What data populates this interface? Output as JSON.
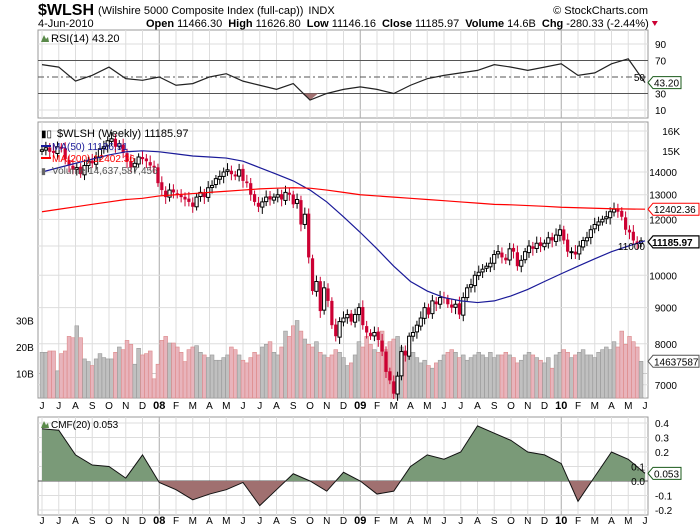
{
  "header": {
    "symbol": "$WLSH",
    "name": "(Wilshire 5000 Composite Index (full-cap))",
    "exchange": "INDX",
    "copyright": "© StockCharts.com",
    "date": "4-Jun-2010",
    "open_label": "Open",
    "open": "11466.30",
    "high_label": "High",
    "high": "11626.80",
    "low_label": "Low",
    "low": "11146.16",
    "close_label": "Close",
    "close": "11185.97",
    "volume_label": "Volume",
    "volume": "14.6B",
    "chg_label": "Chg",
    "chg": "-280.33 (-2.44%)",
    "chg_direction": "down"
  },
  "colors": {
    "down": "#cc0033",
    "up": "#000000",
    "ma50": "#1a1a99",
    "ma200": "#ff0000",
    "vol_down": "#e8b4bc",
    "vol_up": "#c0c0c0",
    "cmf_pos": "#7a9a78",
    "cmf_neg": "#a07070",
    "rsi_box": "#1a5a1a"
  },
  "chart_data": [
    {
      "type": "line",
      "panel": "RSI",
      "title": "RSI(14) 43.20",
      "frequency": "monthly approx",
      "x": [
        "Jun-07",
        "Jul-07",
        "Aug-07",
        "Sep-07",
        "Oct-07",
        "Nov-07",
        "Dec-07",
        "Jan-08",
        "Feb-08",
        "Mar-08",
        "Apr-08",
        "May-08",
        "Jun-08",
        "Jul-08",
        "Aug-08",
        "Sep-08",
        "Oct-08",
        "Nov-08",
        "Dec-08",
        "Jan-09",
        "Feb-09",
        "Mar-09",
        "Apr-09",
        "May-09",
        "Jun-09",
        "Jul-09",
        "Aug-09",
        "Sep-09",
        "Oct-09",
        "Nov-09",
        "Dec-09",
        "Jan-10",
        "Feb-10",
        "Mar-10",
        "Apr-10",
        "May-10",
        "Jun-10"
      ],
      "values": [
        65,
        62,
        45,
        52,
        62,
        48,
        46,
        50,
        40,
        42,
        50,
        54,
        45,
        40,
        35,
        42,
        22,
        30,
        35,
        38,
        35,
        30,
        40,
        48,
        52,
        55,
        58,
        65,
        62,
        58,
        62,
        66,
        52,
        55,
        66,
        72,
        43.2
      ],
      "ylim": [
        0,
        100
      ],
      "ticks": [
        "90",
        "70",
        "50",
        "30",
        "10"
      ],
      "reference_lines": [
        70,
        50,
        30
      ],
      "last_value_label": "43.20"
    },
    {
      "type": "candlestick",
      "panel": "price",
      "title": "$WLSH (Weekly) 11185.97",
      "log_scale": true,
      "ylim": [
        6500,
        16500
      ],
      "ticks": [
        "16K",
        "15K",
        "14000",
        "13000",
        "12000",
        "11000",
        "10000",
        "9000",
        "8000",
        "7000"
      ],
      "tick_values": [
        16000,
        15000,
        14000,
        13000,
        12000,
        11000,
        10000,
        9000,
        8000,
        7000
      ],
      "start_week": "Jun-2007",
      "end_week": "4-Jun-2010",
      "closes": [
        15050,
        15150,
        14950,
        14900,
        15200,
        15100,
        14600,
        14300,
        14100,
        14200,
        13900,
        14300,
        14500,
        14400,
        14700,
        15100,
        15200,
        15500,
        15600,
        15200,
        15350,
        14900,
        14500,
        14200,
        14400,
        14700,
        14600,
        14500,
        14300,
        14200,
        13500,
        13200,
        12900,
        13200,
        13100,
        13000,
        12900,
        12800,
        12700,
        12500,
        12900,
        13100,
        12900,
        13300,
        13400,
        13700,
        13800,
        14000,
        14100,
        13900,
        13800,
        14100,
        13600,
        13500,
        13000,
        12700,
        12500,
        12700,
        12900,
        12800,
        12900,
        13000,
        12800,
        13100,
        13000,
        12600,
        12800,
        11800,
        12200,
        10600,
        9500,
        9800,
        8900,
        9600,
        9200,
        8500,
        8200,
        8600,
        8700,
        8800,
        8600,
        8800,
        9000,
        8500,
        8300,
        8200,
        8300,
        8100,
        7800,
        7300,
        7100,
        6800,
        7200,
        7800,
        7700,
        8200,
        8300,
        8500,
        8700,
        9000,
        8800,
        9200,
        9100,
        9300,
        9300,
        9100,
        9000,
        9100,
        8800,
        9300,
        9600,
        9700,
        10000,
        10100,
        10200,
        10300,
        10400,
        10700,
        10800,
        10600,
        10500,
        10900,
        10800,
        10300,
        10500,
        10800,
        11000,
        10900,
        11100,
        11000,
        11100,
        11300,
        11200,
        11400,
        11600,
        11200,
        10800,
        10800,
        10700,
        11000,
        11200,
        11300,
        11600,
        11800,
        11900,
        12000,
        12100,
        12300,
        12400,
        12300,
        12100,
        11600,
        11500,
        11200,
        11100,
        11185.97
      ],
      "series": [
        {
          "name": "MA(50) 11186.91",
          "label_value": "11186.91",
          "monthly": [
            14000,
            14200,
            14400,
            14600,
            14800,
            14950,
            15000,
            14950,
            14850,
            14750,
            14700,
            14650,
            14500,
            14200,
            13900,
            13600,
            13200,
            12700,
            12100,
            11500,
            10900,
            10300,
            9800,
            9500,
            9300,
            9200,
            9150,
            9200,
            9350,
            9550,
            9800,
            10050,
            10300,
            10550,
            10800,
            11000,
            11187
          ]
        },
        {
          "name": "MA(200) 12402.36",
          "label_value": "12402.36",
          "monthly": [
            12300,
            12400,
            12500,
            12600,
            12700,
            12800,
            12850,
            12950,
            13000,
            13050,
            13100,
            13150,
            13200,
            13250,
            13280,
            13300,
            13280,
            13200,
            13100,
            13000,
            12950,
            12900,
            12850,
            12800,
            12750,
            12700,
            12650,
            12600,
            12580,
            12550,
            12520,
            12480,
            12460,
            12440,
            12420,
            12410,
            12402
          ]
        }
      ],
      "last_close_label": "11185.97"
    },
    {
      "type": "bar",
      "panel": "volume",
      "title": "Volume 14,637,587,456",
      "unit": "B",
      "ticks": [
        "30B",
        "20B",
        "10B"
      ],
      "tick_values": [
        30,
        20,
        10
      ],
      "last_value_label": "14637587",
      "values": [
        18,
        18,
        18.5,
        18.5,
        11,
        17.5,
        18.5,
        24,
        23.5,
        28,
        23.5,
        15.5,
        14.5,
        13,
        15.5,
        17.5,
        16,
        15.5,
        15.5,
        18,
        20,
        19,
        22.5,
        21,
        13.5,
        19.5,
        17,
        17.5,
        18.5,
        8,
        13.5,
        22.5,
        24,
        21.5,
        21.5,
        20,
        18,
        14.5,
        19,
        20,
        20.5,
        18,
        17,
        16,
        17,
        15,
        15,
        16,
        17,
        20,
        19,
        17,
        15,
        14,
        16,
        18,
        17,
        20,
        21,
        22,
        18,
        17,
        20,
        26,
        24,
        28,
        30,
        26,
        23,
        21,
        20,
        22,
        18,
        17,
        16,
        17,
        19,
        18,
        16,
        13,
        14,
        17,
        22,
        20,
        24,
        21,
        19,
        18,
        26,
        19,
        22,
        23,
        24,
        20,
        18,
        17,
        18,
        16,
        14,
        15,
        13,
        12,
        14,
        15,
        17,
        18,
        19,
        18,
        16,
        17,
        15,
        16,
        17,
        18,
        17,
        16,
        18,
        16,
        17,
        17,
        18,
        17,
        16,
        14,
        15,
        17,
        18,
        17,
        16,
        15,
        14,
        16,
        12,
        17,
        18,
        19,
        18,
        16,
        17,
        18,
        19,
        17,
        17,
        16,
        18,
        19,
        20,
        19,
        22,
        20,
        26,
        21,
        24,
        22,
        20,
        14.6
      ]
    },
    {
      "type": "area",
      "panel": "CMF",
      "title": "CMF(20) 0.053",
      "frequency": "monthly approx",
      "values": [
        0.36,
        0.35,
        0.18,
        0.11,
        0.1,
        0.02,
        0.18,
        -0.01,
        -0.06,
        -0.13,
        -0.09,
        -0.06,
        -0.01,
        -0.17,
        -0.06,
        0.05,
        0,
        -0.07,
        0.06,
        0,
        -0.09,
        -0.07,
        0.1,
        0.18,
        0.15,
        0.2,
        0.38,
        0.33,
        0.28,
        0.2,
        0.18,
        0.12,
        -0.14,
        0.03,
        0.2,
        0.15,
        0.053
      ],
      "ylim": [
        -0.22,
        0.44
      ],
      "ticks": [
        "0.4",
        "0.3",
        "0.2",
        "0.1",
        "0.0",
        "-0.1",
        "-0.2"
      ],
      "tick_values": [
        0.4,
        0.3,
        0.2,
        0.1,
        0,
        -0.1,
        -0.2
      ],
      "last_value_label": "0.053"
    }
  ],
  "x_axis": {
    "months": [
      "J",
      "J",
      "A",
      "S",
      "O",
      "N",
      "D",
      "08",
      "F",
      "M",
      "A",
      "M",
      "J",
      "J",
      "A",
      "S",
      "O",
      "N",
      "D",
      "09",
      "F",
      "M",
      "A",
      "M",
      "J",
      "J",
      "A",
      "S",
      "O",
      "N",
      "D",
      "10",
      "F",
      "M",
      "A",
      "M",
      "J"
    ]
  }
}
